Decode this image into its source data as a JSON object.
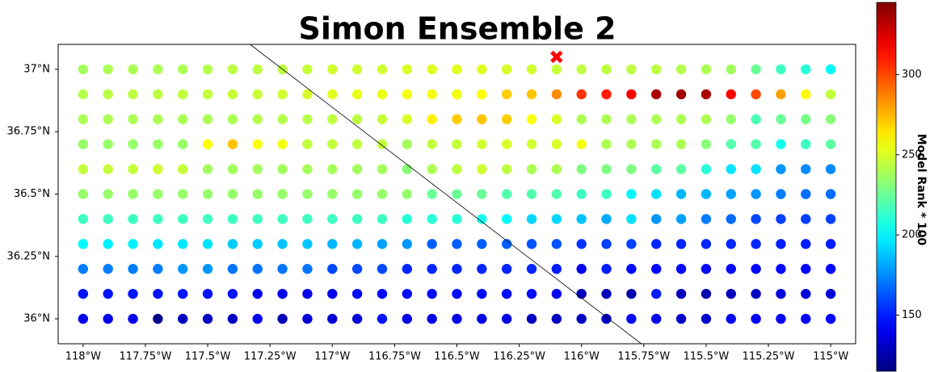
{
  "chart_data": {
    "type": "scatter",
    "title": "Simon Ensemble 2",
    "x": [
      -118,
      -117.9,
      -117.8,
      -117.7,
      -117.6,
      -117.5,
      -117.4,
      -117.3,
      -117.2,
      -117.1,
      -117,
      -116.9,
      -116.8,
      -116.7,
      -116.6,
      -116.5,
      -116.4,
      -116.3,
      -116.2,
      -116.1,
      -116,
      -115.9,
      -115.8,
      -115.7,
      -115.6,
      -115.5,
      -115.4,
      -115.3,
      -115.2,
      -115.1,
      -115
    ],
    "y": [
      37,
      36.9,
      36.8,
      36.7,
      36.6,
      36.5,
      36.4,
      36.3,
      36.2,
      36.1,
      36
    ],
    "values": [
      [
        238,
        240,
        240,
        240,
        240,
        242,
        244,
        244,
        244,
        246,
        248,
        248,
        248,
        250,
        252,
        252,
        252,
        250,
        248,
        246,
        244,
        244,
        244,
        244,
        242,
        240,
        238,
        225,
        215,
        210,
        200
      ],
      [
        242,
        243,
        244,
        244,
        245,
        246,
        246,
        247,
        248,
        250,
        252,
        254,
        254,
        256,
        256,
        256,
        258,
        270,
        272,
        285,
        305,
        310,
        318,
        335,
        338,
        335,
        315,
        300,
        280,
        260,
        245
      ],
      [
        240,
        240,
        240,
        240,
        240,
        240,
        240,
        242,
        242,
        242,
        244,
        244,
        246,
        250,
        262,
        270,
        272,
        270,
        258,
        250,
        240,
        240,
        240,
        240,
        240,
        240,
        235,
        218,
        225,
        228,
        232
      ],
      [
        235,
        235,
        235,
        235,
        235,
        258,
        272,
        258,
        256,
        245,
        245,
        245,
        245,
        238,
        245,
        246,
        248,
        250,
        248,
        250,
        256,
        240,
        240,
        240,
        240,
        232,
        220,
        220,
        205,
        215,
        222
      ],
      [
        245,
        246,
        246,
        248,
        246,
        238,
        238,
        238,
        238,
        238,
        238,
        238,
        238,
        232,
        240,
        244,
        248,
        244,
        240,
        240,
        230,
        230,
        230,
        222,
        222,
        210,
        195,
        195,
        178,
        175,
        175
      ],
      [
        235,
        235,
        235,
        235,
        235,
        235,
        235,
        235,
        235,
        235,
        235,
        235,
        235,
        235,
        225,
        225,
        225,
        220,
        220,
        220,
        215,
        215,
        200,
        195,
        185,
        185,
        180,
        178,
        172,
        168,
        168
      ],
      [
        215,
        215,
        215,
        215,
        215,
        215,
        215,
        215,
        215,
        215,
        215,
        215,
        215,
        210,
        210,
        210,
        205,
        200,
        192,
        192,
        188,
        182,
        195,
        178,
        180,
        172,
        168,
        160,
        158,
        158,
        158
      ],
      [
        200,
        198,
        198,
        196,
        196,
        195,
        190,
        190,
        188,
        188,
        185,
        185,
        180,
        178,
        165,
        165,
        165,
        165,
        162,
        162,
        155,
        158,
        158,
        152,
        152,
        152,
        152,
        152,
        150,
        150,
        150
      ],
      [
        172,
        172,
        172,
        172,
        178,
        178,
        170,
        170,
        170,
        170,
        160,
        160,
        160,
        152,
        152,
        152,
        152,
        152,
        152,
        150,
        140,
        150,
        145,
        145,
        145,
        145,
        145,
        145,
        145,
        145,
        145
      ],
      [
        148,
        148,
        148,
        148,
        148,
        148,
        148,
        140,
        140,
        140,
        140,
        146,
        146,
        146,
        146,
        146,
        146,
        146,
        146,
        140,
        130,
        128,
        125,
        150,
        128,
        125,
        128,
        130,
        135,
        135,
        135
      ],
      [
        140,
        140,
        140,
        118,
        130,
        130,
        130,
        140,
        128,
        135,
        135,
        135,
        148,
        138,
        138,
        138,
        138,
        138,
        130,
        130,
        130,
        130,
        145,
        140,
        132,
        132,
        142,
        142,
        142,
        142,
        142
      ]
    ],
    "xlim": [
      -118.1,
      -114.9
    ],
    "ylim": [
      35.9,
      37.1
    ],
    "xticks": [
      {
        "value": -118,
        "label": "118°W"
      },
      {
        "value": -117.75,
        "label": "117.75°W"
      },
      {
        "value": -117.5,
        "label": "117.5°W"
      },
      {
        "value": -117.25,
        "label": "117.25°W"
      },
      {
        "value": -117,
        "label": "117°W"
      },
      {
        "value": -116.75,
        "label": "116.75°W"
      },
      {
        "value": -116.5,
        "label": "116.5°W"
      },
      {
        "value": -116.25,
        "label": "116.25°W"
      },
      {
        "value": -116,
        "label": "116°W"
      },
      {
        "value": -115.75,
        "label": "115.75°W"
      },
      {
        "value": -115.5,
        "label": "115.5°W"
      },
      {
        "value": -115.25,
        "label": "115.25°W"
      },
      {
        "value": -115,
        "label": "115°W"
      }
    ],
    "yticks": [
      {
        "value": 36,
        "label": "36°N"
      },
      {
        "value": 36.25,
        "label": "36.25°N"
      },
      {
        "value": 36.5,
        "label": "36.5°N"
      },
      {
        "value": 36.75,
        "label": "36.75°N"
      },
      {
        "value": 37,
        "label": "37°N"
      }
    ],
    "colormap": "jet",
    "clim": [
      115,
      345
    ],
    "cticks": [
      150,
      200,
      250,
      300
    ],
    "colorbar_label": "Model Rank * 100",
    "line": {
      "x": [
        -117.33,
        -115.76
      ],
      "y": [
        37.1,
        35.9
      ]
    },
    "marker": {
      "x": -116.1,
      "y": 37.05,
      "color": "#ff0000"
    }
  }
}
